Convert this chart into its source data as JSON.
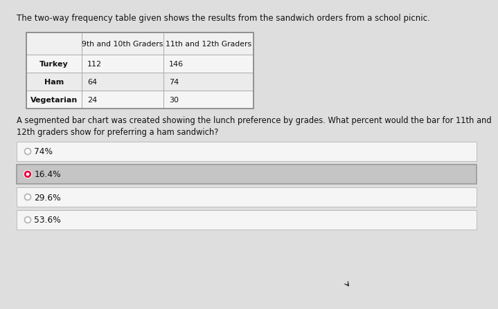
{
  "title_text": "The two-way frequency table given shows the results from the sandwich orders from a school picnic.",
  "table_col0_header": "",
  "table_col1_header": "9th and 10th Graders",
  "table_col2_header": "11th and 12th Graders",
  "table_rows": [
    [
      "Turkey",
      "112",
      "146"
    ],
    [
      "Ham",
      "64",
      "74"
    ],
    [
      "Vegetarian",
      "24",
      "30"
    ]
  ],
  "question_text": "A segmented bar chart was created showing the lunch preference by grades. What percent would the bar for 11th and\n12th graders show for preferring a ham sandwich?",
  "options": [
    "74%",
    "16.4%",
    "29.6%",
    "53.6%"
  ],
  "selected_option": 1,
  "page_bg": "#dedede",
  "content_bg": "#f0f0f0",
  "selected_bg": "#c5c5c5",
  "unselected_bg": "#f5f5f5",
  "selected_dot_color": "#e8003d",
  "unselected_dot_color": "#b0b0b0",
  "table_border_color": "#aaaaaa",
  "table_bg": "#f5f5f5",
  "table_row_alt_bg": "#ebebeb",
  "table_header_bg": "#f0f0f0",
  "text_color": "#111111",
  "option_border": "#bbbbbb"
}
